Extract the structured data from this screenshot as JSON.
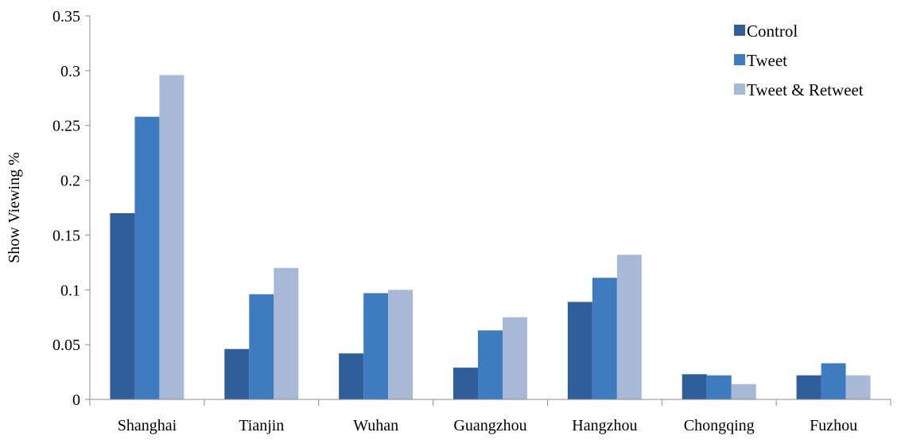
{
  "chart_data": {
    "type": "bar",
    "title": "",
    "xlabel": "",
    "ylabel": "Show Viewing %",
    "ylim": [
      0,
      0.35
    ],
    "yticks": [
      "0",
      "0.05",
      "0.1",
      "0.15",
      "0.2",
      "0.25",
      "0.3",
      "0.35"
    ],
    "grid": false,
    "legend_position": "top-right",
    "categories": [
      "Shanghai",
      "Tianjin",
      "Wuhan",
      "Guangzhou",
      "Hangzhou",
      "Chongqing",
      "Fuzhou"
    ],
    "series": [
      {
        "name": "Control",
        "color": "#2f5e98",
        "values": [
          0.17,
          0.046,
          0.042,
          0.029,
          0.089,
          0.023,
          0.022
        ]
      },
      {
        "name": "Tweet",
        "color": "#3f7bbf",
        "values": [
          0.258,
          0.096,
          0.097,
          0.063,
          0.111,
          0.022,
          0.033
        ]
      },
      {
        "name": "Tweet & Retweet",
        "color": "#a8b9d8",
        "values": [
          0.296,
          0.12,
          0.1,
          0.075,
          0.132,
          0.014,
          0.022
        ]
      }
    ]
  }
}
